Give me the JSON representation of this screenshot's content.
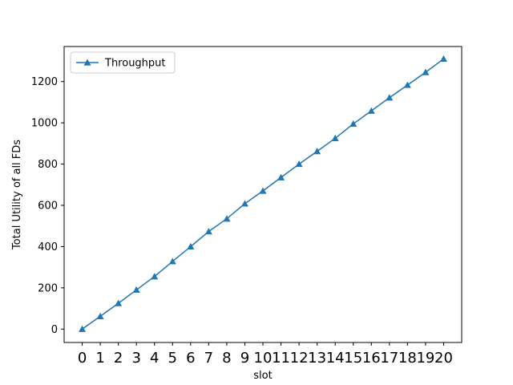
{
  "chart_data": {
    "type": "line",
    "title": "",
    "xlabel": "slot",
    "ylabel": "Total Utility of all FDs",
    "x": [
      0,
      1,
      2,
      3,
      4,
      5,
      6,
      7,
      8,
      9,
      10,
      11,
      12,
      13,
      14,
      15,
      16,
      17,
      18,
      19,
      20
    ],
    "xlim": [
      -1,
      21
    ],
    "ylim": [
      -65,
      1370
    ],
    "yticks": [
      0,
      200,
      400,
      600,
      800,
      1000,
      1200
    ],
    "grid": false,
    "legend_position": "upper-left",
    "series": [
      {
        "name": "Throughput",
        "color": "#1f77b4",
        "marker": "triangle-up",
        "values": [
          0,
          62,
          125,
          190,
          255,
          328,
          400,
          473,
          535,
          608,
          670,
          735,
          800,
          862,
          925,
          995,
          1058,
          1122,
          1183,
          1245,
          1310
        ]
      }
    ]
  }
}
